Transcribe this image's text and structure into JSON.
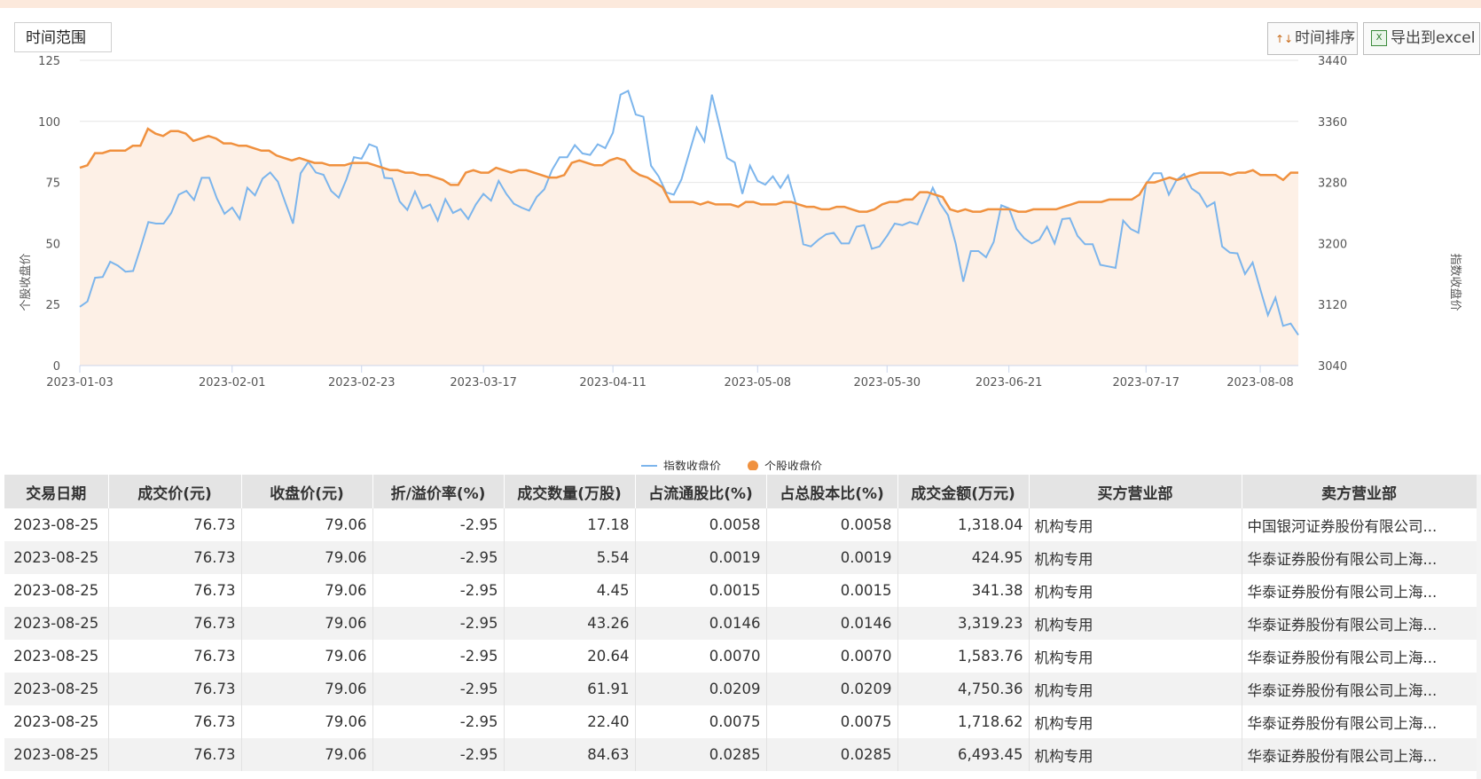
{
  "toolbar": {
    "range_label": "时间范围",
    "sort_label": "时间排序",
    "export_label": "导出到excel",
    "sort_icon": "sort-arrows-icon",
    "export_icon": "excel-icon"
  },
  "colors": {
    "index_line": "#7cb5ec",
    "stock_line": "#f0913f",
    "stock_area": "#fdf0e6"
  },
  "chart_data": {
    "type": "line",
    "ylabel_left": "个股收盘价",
    "ylabel_right": "指数收盘价",
    "ylim_left": [
      0,
      125
    ],
    "ylim_right": [
      3040,
      3440
    ],
    "yticks_left": [
      "0",
      "25",
      "50",
      "75",
      "100",
      "125"
    ],
    "yticks_right": [
      "3040",
      "3120",
      "3200",
      "3280",
      "3360",
      "3440"
    ],
    "xticks": [
      "2023-01-03",
      "2023-02-01",
      "2023-02-23",
      "2023-03-17",
      "2023-04-11",
      "2023-05-08",
      "2023-05-30",
      "2023-06-21",
      "2023-07-17",
      "2023-08-08"
    ],
    "legend": "bottom-center",
    "grid": true,
    "series": [
      {
        "name": "指数收盘价",
        "axis": "right",
        "values": [
          3117,
          3124,
          3155,
          3156,
          3176,
          3171,
          3163,
          3164,
          3195,
          3228,
          3226,
          3226,
          3240,
          3264,
          3269,
          3257,
          3286,
          3286,
          3259,
          3239,
          3247,
          3232,
          3273,
          3263,
          3285,
          3293,
          3281,
          3253,
          3226,
          3292,
          3307,
          3293,
          3290,
          3269,
          3260,
          3284,
          3313,
          3311,
          3330,
          3326,
          3286,
          3285,
          3255,
          3244,
          3268,
          3246,
          3251,
          3230,
          3258,
          3240,
          3245,
          3232,
          3251,
          3265,
          3256,
          3282,
          3265,
          3252,
          3247,
          3243,
          3261,
          3271,
          3296,
          3313,
          3313,
          3329,
          3318,
          3316,
          3330,
          3325,
          3345,
          3395,
          3400,
          3369,
          3366,
          3302,
          3288,
          3267,
          3264,
          3284,
          3318,
          3352,
          3334,
          3395,
          3354,
          3312,
          3306,
          3265,
          3302,
          3282,
          3277,
          3288,
          3273,
          3289,
          3253,
          3199,
          3196,
          3205,
          3212,
          3214,
          3200,
          3200,
          3222,
          3224,
          3193,
          3196,
          3210,
          3226,
          3224,
          3228,
          3225,
          3249,
          3273,
          3252,
          3237,
          3200,
          3150,
          3190,
          3190,
          3182,
          3202,
          3250,
          3246,
          3219,
          3207,
          3200,
          3205,
          3222,
          3200,
          3232,
          3233,
          3210,
          3199,
          3199,
          3172,
          3170,
          3168,
          3230,
          3219,
          3214,
          3278,
          3292,
          3292,
          3264,
          3283,
          3291,
          3272,
          3265,
          3248,
          3254,
          3196,
          3188,
          3187,
          3160,
          3175,
          3140,
          3106,
          3129,
          3092,
          3095,
          3080
        ]
      },
      {
        "name": "个股收盘价",
        "axis": "left",
        "values": [
          81,
          82,
          87,
          87,
          88,
          88,
          88,
          90,
          90,
          97,
          95,
          94,
          96,
          96,
          95,
          92,
          93,
          94,
          93,
          91,
          91,
          90,
          90,
          89,
          88,
          88,
          86,
          85,
          84,
          85,
          84,
          83,
          83,
          82,
          82,
          82,
          83,
          83,
          83,
          82,
          81,
          80,
          80,
          79,
          79,
          78,
          78,
          77,
          76,
          74,
          74,
          79,
          80,
          79,
          79,
          81,
          80,
          79,
          80,
          80,
          79,
          78,
          77,
          77,
          78,
          83,
          84,
          83,
          82,
          82,
          84,
          85,
          84,
          80,
          78,
          77,
          75,
          73,
          67,
          67,
          67,
          67,
          66,
          67,
          66,
          66,
          66,
          65,
          67,
          67,
          66,
          66,
          66,
          67,
          67,
          66,
          65,
          65,
          64,
          64,
          65,
          65,
          64,
          63,
          63,
          64,
          66,
          67,
          67,
          68,
          68,
          71,
          71,
          70,
          69,
          64,
          63,
          64,
          63,
          63,
          64,
          64,
          64,
          64,
          63,
          63,
          64,
          64,
          64,
          64,
          65,
          66,
          67,
          67,
          67,
          67,
          68,
          68,
          68,
          68,
          70,
          75,
          75,
          76,
          77,
          76,
          77,
          78,
          79,
          79,
          79,
          79,
          78,
          79,
          79,
          80,
          78,
          78,
          78,
          76,
          79,
          79
        ]
      }
    ]
  },
  "table": {
    "headers": [
      "交易日期",
      "成交价(元)",
      "收盘价(元)",
      "折/溢价率(%)",
      "成交数量(万股)",
      "占流通股比(%)",
      "占总股本比(%)",
      "成交金额(万元)",
      "买方营业部",
      "卖方营业部"
    ],
    "rows": [
      [
        "2023-08-25",
        "76.73",
        "79.06",
        "-2.95",
        "17.18",
        "0.0058",
        "0.0058",
        "1,318.04",
        "机构专用",
        "中国银河证券股份有限公司..."
      ],
      [
        "2023-08-25",
        "76.73",
        "79.06",
        "-2.95",
        "5.54",
        "0.0019",
        "0.0019",
        "424.95",
        "机构专用",
        "华泰证券股份有限公司上海..."
      ],
      [
        "2023-08-25",
        "76.73",
        "79.06",
        "-2.95",
        "4.45",
        "0.0015",
        "0.0015",
        "341.38",
        "机构专用",
        "华泰证券股份有限公司上海..."
      ],
      [
        "2023-08-25",
        "76.73",
        "79.06",
        "-2.95",
        "43.26",
        "0.0146",
        "0.0146",
        "3,319.23",
        "机构专用",
        "华泰证券股份有限公司上海..."
      ],
      [
        "2023-08-25",
        "76.73",
        "79.06",
        "-2.95",
        "20.64",
        "0.0070",
        "0.0070",
        "1,583.76",
        "机构专用",
        "华泰证券股份有限公司上海..."
      ],
      [
        "2023-08-25",
        "76.73",
        "79.06",
        "-2.95",
        "61.91",
        "0.0209",
        "0.0209",
        "4,750.36",
        "机构专用",
        "华泰证券股份有限公司上海..."
      ],
      [
        "2023-08-25",
        "76.73",
        "79.06",
        "-2.95",
        "22.40",
        "0.0075",
        "0.0075",
        "1,718.62",
        "机构专用",
        "华泰证券股份有限公司上海..."
      ],
      [
        "2023-08-25",
        "76.73",
        "79.06",
        "-2.95",
        "84.63",
        "0.0285",
        "0.0285",
        "6,493.45",
        "机构专用",
        "华泰证券股份有限公司上海..."
      ]
    ]
  }
}
